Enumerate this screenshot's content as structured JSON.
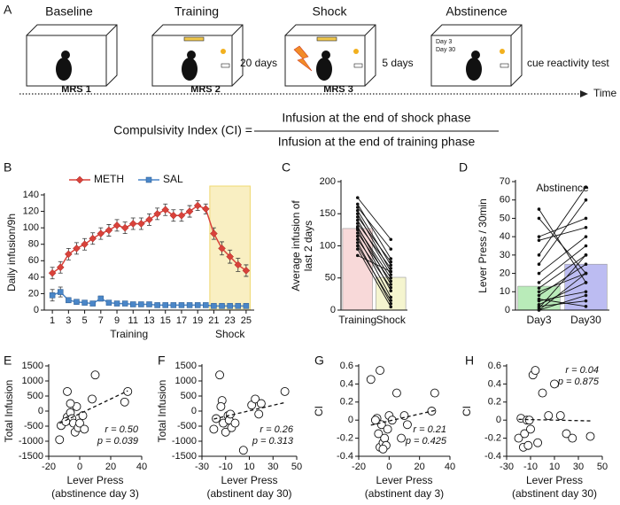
{
  "diagram": {
    "label": "A",
    "stages": [
      "Baseline",
      "Training",
      "Shock",
      "Abstinence"
    ],
    "scans": [
      "MRS 1",
      "MRS 2",
      "MRS 3"
    ],
    "intervals": [
      "20 days",
      "5 days"
    ],
    "abstinence_days": [
      "Day 3",
      "Day 30"
    ],
    "test": "cue reactivity test",
    "axis": "Time",
    "formula": {
      "lhs": "Compulsivity Index (CI) =",
      "numerator": "Infusion at the end of shock phase",
      "denominator": "Infusion at the end of training phase"
    }
  },
  "chart_data": [
    {
      "type": "line",
      "panel": "B",
      "ylabel": [
        "Daily infusion/9h"
      ],
      "x": [
        1,
        2,
        3,
        4,
        5,
        6,
        7,
        8,
        9,
        10,
        11,
        12,
        13,
        14,
        15,
        16,
        17,
        18,
        19,
        20,
        21,
        22,
        23,
        24,
        25
      ],
      "xlim": [
        0,
        26
      ],
      "xticks": [
        1,
        3,
        5,
        7,
        9,
        11,
        13,
        15,
        17,
        19,
        21,
        23,
        25
      ],
      "ylim": [
        0,
        140
      ],
      "yticks": [
        0,
        20,
        40,
        60,
        80,
        100,
        120,
        140
      ],
      "legend": "top",
      "xgroups": [
        {
          "label": "Training",
          "range": [
            1,
            20
          ]
        },
        {
          "label": "Shock",
          "range": [
            21,
            25
          ]
        }
      ],
      "highlight": {
        "x": [
          21,
          25
        ],
        "color": "#f9efc2",
        "edge": "#f0d870"
      },
      "series": [
        {
          "name": "METH",
          "color": "#d9423a",
          "marker": "diamond",
          "values": [
            45,
            52,
            68,
            75,
            80,
            87,
            93,
            97,
            103,
            100,
            105,
            105,
            110,
            117,
            122,
            115,
            115,
            120,
            127,
            123,
            93,
            75,
            65,
            55,
            48
          ],
          "errors": [
            7,
            7,
            7,
            7,
            7,
            7,
            7,
            7,
            7,
            7,
            7,
            7,
            7,
            7,
            7,
            7,
            7,
            7,
            6,
            6,
            7,
            8,
            8,
            8,
            7
          ]
        },
        {
          "name": "SAL",
          "color": "#4a86c8",
          "marker": "square",
          "values": [
            18,
            22,
            12,
            10,
            9,
            8,
            14,
            9,
            8,
            8,
            7,
            7,
            7,
            6,
            6,
            6,
            6,
            6,
            6,
            6,
            5,
            5,
            5,
            5,
            5
          ],
          "errors": [
            7,
            6,
            3,
            3,
            2,
            2,
            3,
            2,
            2,
            2,
            2,
            2,
            2,
            2,
            2,
            2,
            2,
            2,
            2,
            2,
            2,
            2,
            2,
            2,
            2
          ]
        }
      ]
    },
    {
      "type": "bar",
      "panel": "C",
      "ylabel": [
        "Average infusion of",
        "last 2 days"
      ],
      "categories": [
        "Training",
        "Shock"
      ],
      "values": [
        127,
        51
      ],
      "colors": [
        "#f8d9d9",
        "#f5f5cf"
      ],
      "ylim": [
        0,
        200
      ],
      "yticks": [
        0,
        50,
        100,
        150,
        200
      ],
      "subjects": [
        [
          175,
          110
        ],
        [
          165,
          80
        ],
        [
          160,
          95
        ],
        [
          155,
          70
        ],
        [
          150,
          60
        ],
        [
          145,
          75
        ],
        [
          140,
          55
        ],
        [
          135,
          65
        ],
        [
          130,
          40
        ],
        [
          128,
          50
        ],
        [
          125,
          30
        ],
        [
          120,
          45
        ],
        [
          115,
          20
        ],
        [
          110,
          35
        ],
        [
          105,
          10
        ],
        [
          100,
          15
        ],
        [
          95,
          5
        ],
        [
          85,
          60
        ]
      ]
    },
    {
      "type": "bar",
      "panel": "D",
      "title": "Abstinence",
      "ylabel": [
        "Lever Press / 30min"
      ],
      "categories": [
        "Day3",
        "Day30"
      ],
      "values": [
        13,
        25
      ],
      "colors": [
        "#b9ebb9",
        "#bcbcf2"
      ],
      "ylim": [
        0,
        70
      ],
      "yticks": [
        0,
        10,
        20,
        30,
        40,
        50,
        60,
        70
      ],
      "subjects": [
        [
          55,
          15
        ],
        [
          50,
          20
        ],
        [
          40,
          50
        ],
        [
          38,
          45
        ],
        [
          30,
          67
        ],
        [
          25,
          60
        ],
        [
          20,
          40
        ],
        [
          15,
          35
        ],
        [
          12,
          30
        ],
        [
          10,
          20
        ],
        [
          8,
          25
        ],
        [
          5,
          10
        ],
        [
          3,
          15
        ],
        [
          2,
          5
        ],
        [
          0,
          20
        ],
        [
          0,
          8
        ],
        [
          1,
          30
        ],
        [
          6,
          2
        ]
      ]
    },
    {
      "type": "scatter",
      "panel": "E",
      "ylabel": [
        "Total Infusion"
      ],
      "xlabel": [
        "Lever Press",
        "(abstinence day 3)"
      ],
      "xlim": [
        -20,
        40
      ],
      "xticks": [
        -20,
        0,
        20,
        40
      ],
      "ylim": [
        -1500,
        1500
      ],
      "yticks": [
        -1500,
        -1000,
        -500,
        0,
        500,
        1000,
        1500
      ],
      "x": [
        -13,
        -12,
        -8,
        -7,
        -6,
        -5,
        -4,
        -3,
        -1,
        0,
        2,
        3,
        -8,
        -9,
        -2,
        8,
        10,
        29,
        31,
        -6
      ],
      "values": [
        -950,
        -480,
        -200,
        -300,
        -50,
        -250,
        -400,
        -700,
        -550,
        -400,
        -150,
        -600,
        650,
        -350,
        150,
        400,
        1200,
        300,
        650,
        250
      ],
      "annotations": [
        "r = 0.50",
        "p = 0.039"
      ],
      "annotation_corner": "lower right"
    },
    {
      "type": "scatter",
      "panel": "F",
      "ylabel": [
        "Total Infusion"
      ],
      "xlabel": [
        "Lever Press",
        "(abstinent day 30)"
      ],
      "xlim": [
        -30,
        50
      ],
      "xticks": [
        -30,
        -10,
        10,
        30,
        50
      ],
      "ylim": [
        -1500,
        1500
      ],
      "yticks": [
        -1500,
        -1000,
        -500,
        0,
        500,
        1000,
        1500
      ],
      "x": [
        -20,
        -18,
        -15,
        -13,
        -12,
        -10,
        -8,
        -7,
        -6,
        -5,
        -2,
        5,
        12,
        15,
        18,
        20,
        40,
        -14
      ],
      "values": [
        -600,
        -250,
        1200,
        350,
        -400,
        -700,
        -150,
        -300,
        -100,
        -550,
        -400,
        -1300,
        200,
        400,
        -100,
        250,
        650,
        150
      ],
      "annotations": [
        "r = 0.26",
        "p = 0.313"
      ],
      "annotation_corner": "lower right"
    },
    {
      "type": "scatter",
      "panel": "G",
      "ylabel": [
        "CI"
      ],
      "xlabel": [
        "Lever Press",
        "(abstinent day 3)"
      ],
      "xlim": [
        -20,
        40
      ],
      "xticks": [
        -20,
        0,
        20,
        40
      ],
      "ylim": [
        -0.4,
        0.6
      ],
      "yticks": [
        -0.4,
        -0.2,
        0,
        0.2,
        0.4,
        0.6
      ],
      "x": [
        -12,
        -8,
        -6,
        -5,
        -7,
        -6,
        -4,
        -3,
        -2,
        -1,
        0,
        2,
        5,
        8,
        10,
        12,
        28,
        30,
        -9,
        -4
      ],
      "values": [
        0.45,
        0.02,
        0.55,
        -0.05,
        -0.15,
        -0.3,
        -0.25,
        -0.2,
        -0.28,
        -0.1,
        0.05,
        0,
        0.3,
        -0.2,
        0.05,
        -0.05,
        0.1,
        0.3,
        0,
        -0.32
      ],
      "annotations": [
        "r = 0.21",
        "p = 0.425"
      ],
      "annotation_corner": "lower right"
    },
    {
      "type": "scatter",
      "panel": "H",
      "ylabel": [
        "CI"
      ],
      "xlabel": [
        "Lever Press",
        "(abstinent day 30)"
      ],
      "xlim": [
        -30,
        50
      ],
      "xticks": [
        -30,
        -10,
        10,
        30,
        50
      ],
      "ylim": [
        -0.4,
        0.6
      ],
      "yticks": [
        -0.4,
        -0.2,
        0,
        0.2,
        0.4,
        0.6
      ],
      "x": [
        -20,
        -18,
        -16,
        -15,
        -13,
        -12,
        -10,
        -8,
        -6,
        -4,
        0,
        5,
        10,
        15,
        20,
        25,
        40,
        -11
      ],
      "values": [
        -0.2,
        0.02,
        -0.3,
        -0.15,
        0,
        -0.28,
        -0.1,
        0.5,
        0.55,
        -0.25,
        0.3,
        0.05,
        0.4,
        0.05,
        -0.15,
        -0.2,
        -0.18,
        0
      ],
      "annotations": [
        "r = 0.04",
        "p = 0.875"
      ],
      "annotation_corner": "upper right"
    }
  ]
}
